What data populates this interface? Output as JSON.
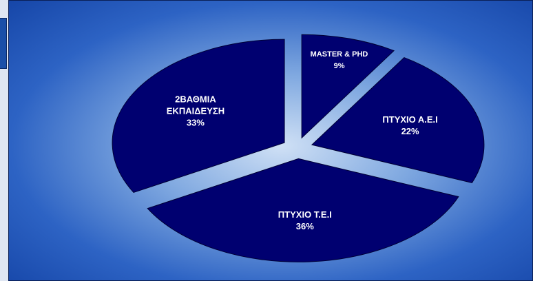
{
  "chart_data": {
    "type": "pie",
    "categories": [
      "MASTER & PHD",
      "ΠΤΥΧΙΟ Α.Ε.Ι",
      "ΠΤΥΧΙΟ Τ.Ε.Ι",
      "2ΒΑΘΜΙΑ ΕΚΠΑΙΔΕΥΣΗ"
    ],
    "values": [
      9,
      22,
      36,
      33
    ],
    "value_labels": [
      "9%",
      "22%",
      "36%",
      "33%"
    ],
    "color": "#000070"
  }
}
